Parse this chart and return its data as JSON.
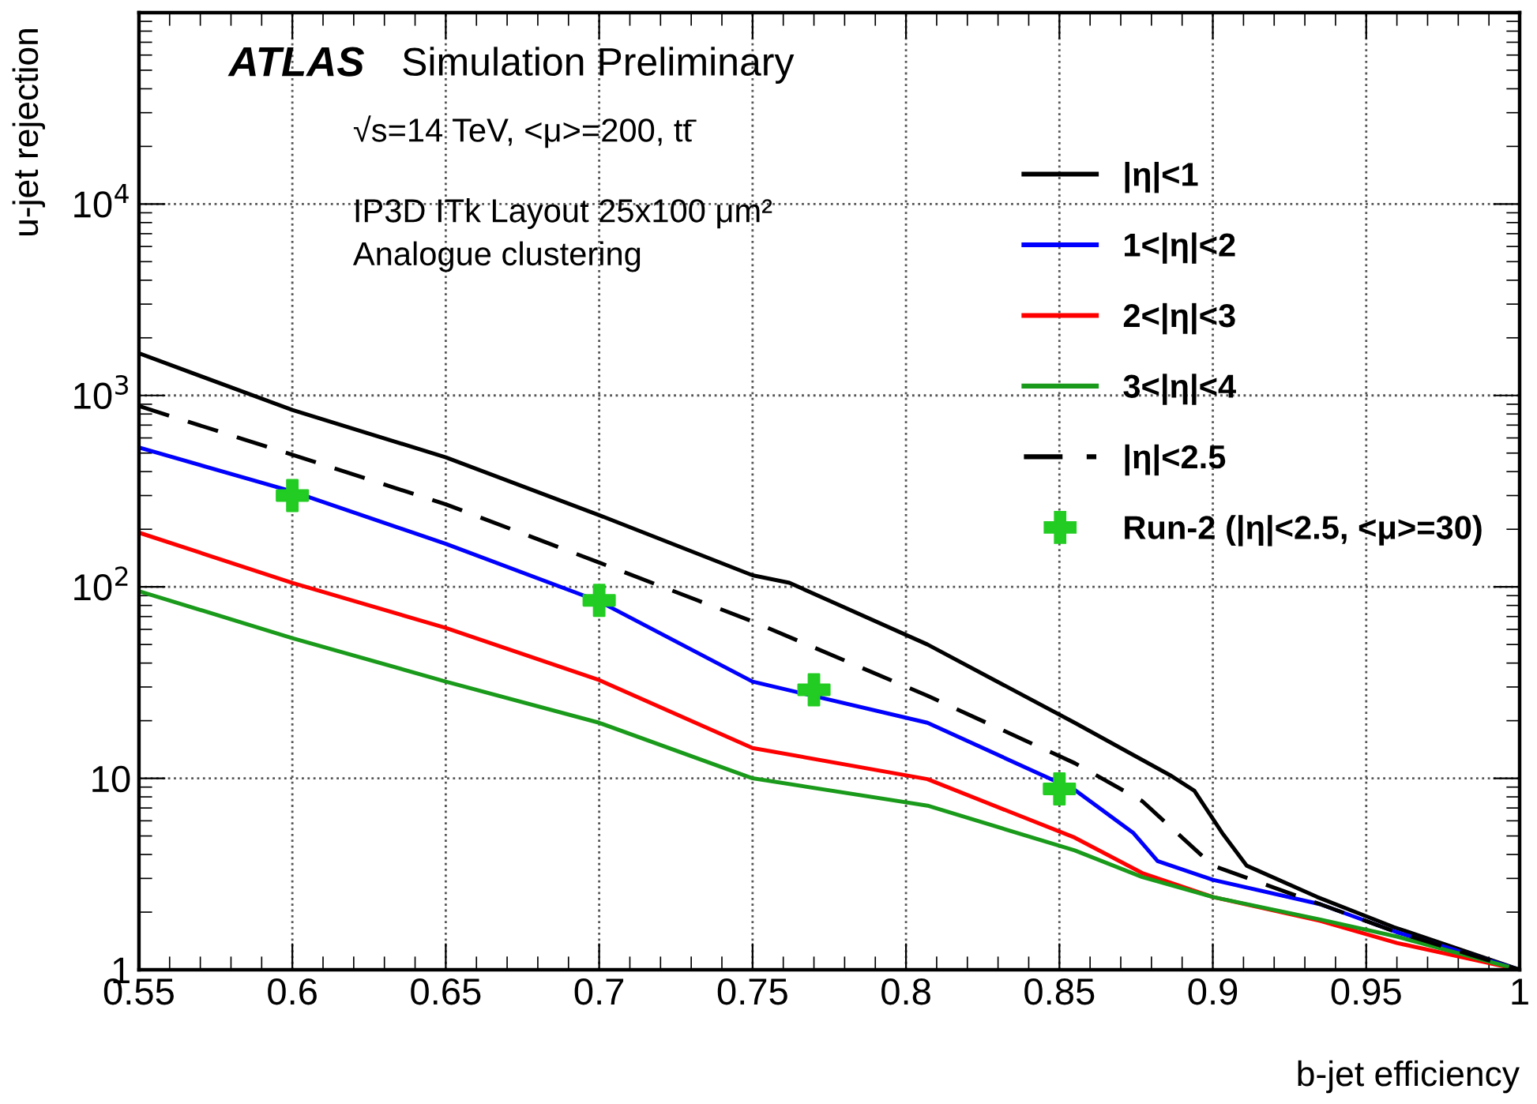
{
  "chart_data": {
    "type": "line",
    "xlabel": "b-jet efficiency",
    "ylabel": "u-jet rejection",
    "log": "y",
    "grid": true,
    "legend": "top right",
    "xlim": [
      0.55,
      1
    ],
    "ylim": [
      1,
      100000
    ],
    "xticks": [
      0.55,
      0.6,
      0.65,
      0.7,
      0.75,
      0.8,
      0.85,
      0.9,
      0.95,
      1
    ],
    "yticks": [
      1,
      10,
      {
        "value": 100,
        "label": "10$^{2}$"
      },
      {
        "value": 1000,
        "label": "10$^{3}$"
      },
      {
        "value": 10000,
        "label": "10$^{4}$"
      }
    ],
    "annotations": [
      "ATLAS",
      "Simulation Preliminary",
      "√s=14 TeV, <μ>=200, tt̄",
      "IP3D ITk Layout 25x100 μm²",
      "Analogue clustering"
    ],
    "series": [
      {
        "name": "|η|<1",
        "color": "#000000",
        "line_style": "solid",
        "x": [
          0.55,
          0.6,
          0.65,
          0.7,
          0.75,
          0.762,
          0.807,
          0.855,
          0.886,
          0.894,
          0.903,
          0.911,
          0.934,
          0.959,
          1
        ],
        "values": [
          1660,
          840,
          475,
          237,
          115,
          105,
          50,
          19.5,
          10.4,
          8.6,
          5.2,
          3.5,
          2.4,
          1.67,
          1
        ]
      },
      {
        "name": "1<|η|<2",
        "color": "#0000ff",
        "line_style": "solid",
        "x": [
          0.55,
          0.6,
          0.65,
          0.7,
          0.75,
          0.807,
          0.855,
          0.874,
          0.882,
          0.9,
          0.935,
          0.96,
          1
        ],
        "values": [
          535,
          315,
          168,
          84,
          32,
          19.5,
          8.7,
          5.2,
          3.7,
          2.95,
          2.2,
          1.57,
          1
        ]
      },
      {
        "name": "2<|η|<3",
        "color": "#ff0000",
        "line_style": "solid",
        "x": [
          0.55,
          0.6,
          0.65,
          0.7,
          0.75,
          0.807,
          0.855,
          0.877,
          0.9,
          0.935,
          0.96,
          1
        ],
        "values": [
          192,
          105,
          61,
          32.6,
          14.4,
          9.9,
          4.9,
          3.2,
          2.4,
          1.8,
          1.38,
          1
        ]
      },
      {
        "name": "3<|η|<4",
        "color": "#1a9a1a",
        "line_style": "solid",
        "x": [
          0.55,
          0.6,
          0.65,
          0.7,
          0.75,
          0.807,
          0.855,
          0.877,
          0.9,
          0.935,
          0.96,
          1
        ],
        "values": [
          95,
          54,
          32,
          19.5,
          10,
          7.2,
          4.2,
          3.05,
          2.4,
          1.83,
          1.49,
          1
        ]
      },
      {
        "name": "|η|<2.5",
        "color": "#000000",
        "line_style": "dashed",
        "x": [
          0.55,
          0.6,
          0.65,
          0.7,
          0.75,
          0.807,
          0.855,
          0.877,
          0.89,
          0.9,
          0.935,
          0.96,
          1
        ],
        "values": [
          880,
          490,
          270,
          134,
          66,
          27,
          12,
          7.6,
          4.9,
          3.5,
          2.2,
          1.57,
          1
        ]
      },
      {
        "name": "Run-2 (|η|<2.5, <μ>=30)",
        "type": "scatter",
        "marker": "cross",
        "color": "#22cc22",
        "x": [
          0.6,
          0.7,
          0.77,
          0.85
        ],
        "values": [
          300,
          85,
          29,
          8.8
        ]
      }
    ]
  }
}
